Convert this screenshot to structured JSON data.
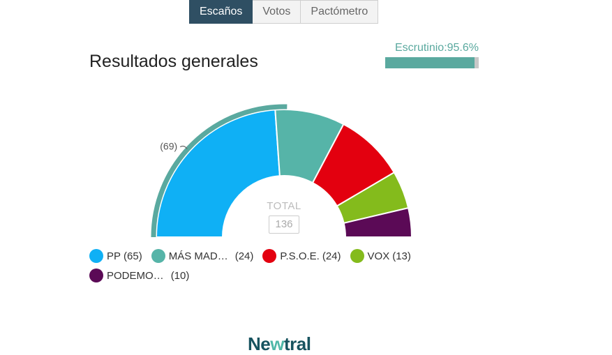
{
  "tabs": [
    {
      "label": "Escaños",
      "active": true
    },
    {
      "label": "Votos",
      "active": false
    },
    {
      "label": "Pactómetro",
      "active": false
    }
  ],
  "title": "Resultados generales",
  "scrutiny": {
    "label": "Escrutinio:95.6%",
    "percent": 95.6,
    "color": "#5aa99f"
  },
  "logo": {
    "part1": "Ne",
    "part2": "w",
    "part3": "tral"
  },
  "chart_data": {
    "type": "pie",
    "variant": "parliament-semicircle",
    "total_label": "TOTAL",
    "total": "136",
    "majority_label": "(69)",
    "majority": 69,
    "majority_color": "#5aa99f",
    "series": [
      {
        "name": "PP",
        "display": "PP",
        "seats": 65,
        "seats_label": "(65)",
        "color": "#0fb0f5"
      },
      {
        "name": "MÁS MADRID",
        "display": "MÁS MAD…",
        "seats": 24,
        "seats_label": "(24)",
        "color": "#56b4a8"
      },
      {
        "name": "P.S.O.E.",
        "display": "P.S.O.E.",
        "seats": 24,
        "seats_label": "(24)",
        "color": "#e3000f"
      },
      {
        "name": "VOX",
        "display": "VOX",
        "seats": 13,
        "seats_label": "(13)",
        "color": "#84bb1c"
      },
      {
        "name": "PODEMOS",
        "display": "PODEMO…",
        "seats": 10,
        "seats_label": "(10)",
        "color": "#5b0a56"
      }
    ]
  }
}
